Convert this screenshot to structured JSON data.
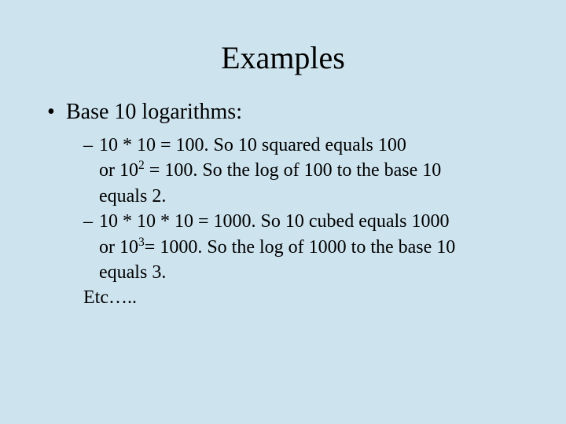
{
  "background_color": "#cde3ee",
  "text_color": "#000000",
  "font_family": "Times New Roman",
  "title": {
    "text": "Examples",
    "fontsize": 40,
    "align": "center"
  },
  "bullets": {
    "level1": {
      "fontsize": 28,
      "marker": "•",
      "items": [
        {
          "text": "Base 10 logarithms:"
        }
      ]
    },
    "level2": {
      "fontsize": 24,
      "marker": "–",
      "items": [
        {
          "line1": "10 * 10 = 100.  So 10 squared equals 100",
          "line2_pre": "or 10",
          "line2_sup": "2",
          "line2_post": " = 100.  So the log of 100 to the base 10",
          "line3": "equals 2."
        },
        {
          "line1": "10 * 10 * 10  = 1000.  So 10 cubed equals 1000",
          "line2_pre": "or 10",
          "line2_sup": "3",
          "line2_post": "= 1000.  So the log of 1000 to the base 10",
          "line3": "equals 3."
        }
      ],
      "trailing": "Etc….."
    }
  }
}
